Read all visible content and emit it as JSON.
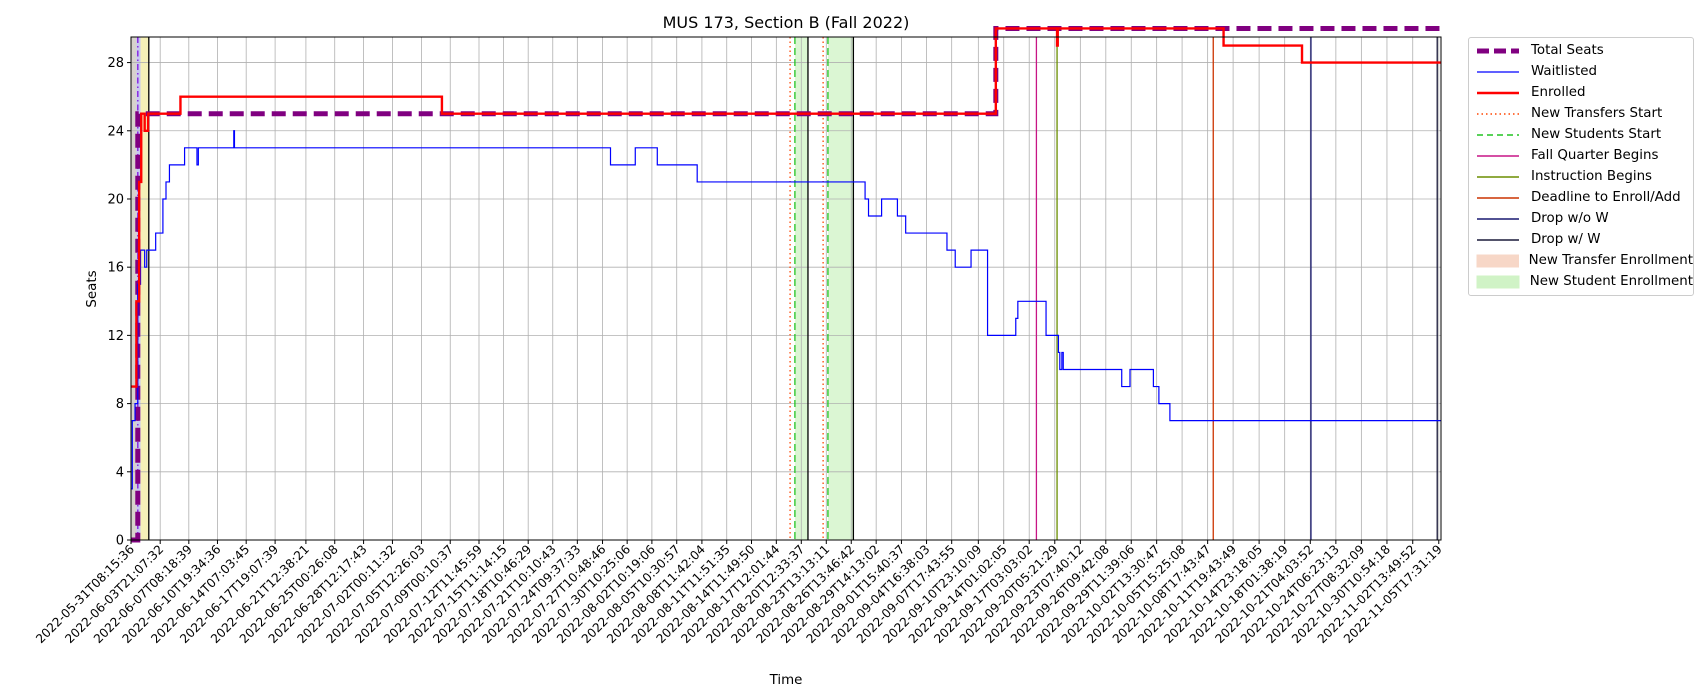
{
  "chart_data": {
    "type": "line",
    "title": "MUS 173, Section B (Fall 2022)",
    "xlabel": "Time",
    "ylabel": "Seats",
    "x_type": "datetime",
    "xlim": [
      "2022-05-31T08:15:36",
      "2022-11-06T00:00:00"
    ],
    "ylim": [
      0,
      29.5
    ],
    "yticks": [
      0,
      4,
      8,
      12,
      16,
      20,
      24,
      28
    ],
    "xtick_labels": [
      "2022-05-31T08:15:36",
      "2022-06-03T21:07:32",
      "2022-06-07T08:18:39",
      "2022-06-10T19:34:36",
      "2022-06-14T07:03:45",
      "2022-06-17T19:07:39",
      "2022-06-21T12:38:21",
      "2022-06-25T00:26:08",
      "2022-06-28T12:17:43",
      "2022-07-02T00:11:32",
      "2022-07-05T12:26:03",
      "2022-07-09T00:10:37",
      "2022-07-12T11:45:59",
      "2022-07-15T11:14:15",
      "2022-07-18T10:46:29",
      "2022-07-21T10:10:43",
      "2022-07-24T09:37:33",
      "2022-07-27T10:48:46",
      "2022-07-30T10:25:06",
      "2022-08-02T10:19:06",
      "2022-08-05T10:30:57",
      "2022-08-08T11:42:04",
      "2022-08-11T11:51:35",
      "2022-08-14T11:49:50",
      "2022-08-17T12:01:44",
      "2022-08-20T12:33:37",
      "2022-08-23T13:13:11",
      "2022-08-26T13:46:42",
      "2022-08-29T14:13:02",
      "2022-09-01T15:40:37",
      "2022-09-04T16:38:03",
      "2022-09-07T17:43:55",
      "2022-09-10T23:10:09",
      "2022-09-14T01:02:05",
      "2022-09-17T03:03:02",
      "2022-09-20T05:21:29",
      "2022-09-23T07:40:12",
      "2022-09-26T09:42:08",
      "2022-09-29T11:39:06",
      "2022-10-02T13:30:47",
      "2022-10-05T15:25:08",
      "2022-10-08T17:43:47",
      "2022-10-11T19:43:49",
      "2022-10-14T23:18:05",
      "2022-10-18T01:38:19",
      "2022-10-21T04:03:52",
      "2022-10-24T06:23:13",
      "2022-10-27T08:32:09",
      "2022-10-30T10:54:18",
      "2022-11-02T13:49:52",
      "2022-11-05T17:31:19"
    ],
    "grid": true,
    "legend_position": "outside upper right",
    "series": [
      {
        "name": "Total Seats",
        "color": "#800080",
        "style": "dashed",
        "points": [
          [
            "2022-05-31T08:15:36",
            0
          ],
          [
            "2022-06-01T04:00:00",
            0
          ],
          [
            "2022-06-01T04:00:00",
            25
          ],
          [
            "2022-09-13T02:00:00",
            25
          ],
          [
            "2022-09-13T02:00:00",
            30
          ],
          [
            "2022-11-06T00:00:00",
            30
          ]
        ]
      },
      {
        "name": "Waitlisted",
        "color": "#0000ff",
        "style": "solid",
        "points": [
          [
            "2022-05-31T08:15:36",
            3
          ],
          [
            "2022-05-31T12:00:00",
            3
          ],
          [
            "2022-05-31T12:00:00",
            7
          ],
          [
            "2022-05-31T20:00:00",
            7
          ],
          [
            "2022-05-31T20:00:00",
            8
          ],
          [
            "2022-06-01T04:00:00",
            8
          ],
          [
            "2022-06-01T04:00:00",
            15
          ],
          [
            "2022-06-01T12:00:00",
            15
          ],
          [
            "2022-06-01T12:00:00",
            17
          ],
          [
            "2022-06-02T00:00:00",
            17
          ],
          [
            "2022-06-02T00:00:00",
            16
          ],
          [
            "2022-06-02T06:00:00",
            16
          ],
          [
            "2022-06-02T06:00:00",
            17
          ],
          [
            "2022-06-03T08:00:00",
            17
          ],
          [
            "2022-06-03T08:00:00",
            18
          ],
          [
            "2022-06-04T05:00:00",
            18
          ],
          [
            "2022-06-04T05:00:00",
            20
          ],
          [
            "2022-06-04T14:00:00",
            20
          ],
          [
            "2022-06-04T14:00:00",
            21
          ],
          [
            "2022-06-05T00:00:00",
            21
          ],
          [
            "2022-06-05T00:00:00",
            22
          ],
          [
            "2022-06-06T20:00:00",
            22
          ],
          [
            "2022-06-06T20:00:00",
            23
          ],
          [
            "2022-06-08T08:00:00",
            23
          ],
          [
            "2022-06-08T08:00:00",
            22
          ],
          [
            "2022-06-08T12:00:00",
            22
          ],
          [
            "2022-06-08T12:00:00",
            23
          ],
          [
            "2022-06-12T19:00:00",
            23
          ],
          [
            "2022-06-12T19:00:00",
            24
          ],
          [
            "2022-06-12T21:00:00",
            24
          ],
          [
            "2022-06-12T21:00:00",
            23
          ],
          [
            "2022-07-28T10:00:00",
            23
          ],
          [
            "2022-07-28T10:00:00",
            22
          ],
          [
            "2022-07-31T10:00:00",
            22
          ],
          [
            "2022-07-31T10:00:00",
            23
          ],
          [
            "2022-08-03T02:00:00",
            23
          ],
          [
            "2022-08-03T02:00:00",
            22
          ],
          [
            "2022-08-07T22:00:00",
            22
          ],
          [
            "2022-08-07T22:00:00",
            21
          ],
          [
            "2022-08-28T06:00:00",
            21
          ],
          [
            "2022-08-28T06:00:00",
            20
          ],
          [
            "2022-08-28T16:00:00",
            20
          ],
          [
            "2022-08-28T16:00:00",
            19
          ],
          [
            "2022-08-30T06:00:00",
            19
          ],
          [
            "2022-08-30T06:00:00",
            20
          ],
          [
            "2022-09-01T04:00:00",
            20
          ],
          [
            "2022-09-01T04:00:00",
            19
          ],
          [
            "2022-09-02T04:00:00",
            19
          ],
          [
            "2022-09-02T04:00:00",
            18
          ],
          [
            "2022-09-07T04:00:00",
            18
          ],
          [
            "2022-09-07T04:00:00",
            17
          ],
          [
            "2022-09-08T04:00:00",
            17
          ],
          [
            "2022-09-08T04:00:00",
            16
          ],
          [
            "2022-09-10T02:00:00",
            16
          ],
          [
            "2022-09-10T02:00:00",
            17
          ],
          [
            "2022-09-12T02:00:00",
            17
          ],
          [
            "2022-09-12T02:00:00",
            12
          ],
          [
            "2022-09-15T12:00:00",
            12
          ],
          [
            "2022-09-15T12:00:00",
            13
          ],
          [
            "2022-09-15T18:00:00",
            13
          ],
          [
            "2022-09-15T18:00:00",
            14
          ],
          [
            "2022-09-19T04:00:00",
            14
          ],
          [
            "2022-09-19T04:00:00",
            12
          ],
          [
            "2022-09-20T16:00:00",
            12
          ],
          [
            "2022-09-20T16:00:00",
            11
          ],
          [
            "2022-09-20T20:00:00",
            11
          ],
          [
            "2022-09-20T20:00:00",
            10
          ],
          [
            "2022-09-21T02:00:00",
            10
          ],
          [
            "2022-09-21T02:00:00",
            11
          ],
          [
            "2022-09-21T06:00:00",
            11
          ],
          [
            "2022-09-21T06:00:00",
            10
          ],
          [
            "2022-09-28T08:00:00",
            10
          ],
          [
            "2022-09-28T08:00:00",
            9
          ],
          [
            "2022-09-29T08:00:00",
            9
          ],
          [
            "2022-09-29T08:00:00",
            10
          ],
          [
            "2022-10-02T04:00:00",
            10
          ],
          [
            "2022-10-02T04:00:00",
            9
          ],
          [
            "2022-10-02T20:00:00",
            9
          ],
          [
            "2022-10-02T20:00:00",
            8
          ],
          [
            "2022-10-04T04:00:00",
            8
          ],
          [
            "2022-10-04T04:00:00",
            7
          ],
          [
            "2022-11-06T00:00:00",
            7
          ]
        ]
      },
      {
        "name": "Enrolled",
        "color": "#ff0000",
        "style": "solid",
        "points": [
          [
            "2022-05-31T08:15:36",
            9
          ],
          [
            "2022-06-01T00:00:00",
            9
          ],
          [
            "2022-06-01T00:00:00",
            14
          ],
          [
            "2022-06-01T08:00:00",
            14
          ],
          [
            "2022-06-01T08:00:00",
            21
          ],
          [
            "2022-06-01T14:00:00",
            21
          ],
          [
            "2022-06-01T14:00:00",
            25
          ],
          [
            "2022-06-02T00:00:00",
            25
          ],
          [
            "2022-06-02T00:00:00",
            24
          ],
          [
            "2022-06-02T10:00:00",
            24
          ],
          [
            "2022-06-02T10:00:00",
            25
          ],
          [
            "2022-06-06T08:00:00",
            25
          ],
          [
            "2022-06-06T08:00:00",
            26
          ],
          [
            "2022-07-08T00:00:00",
            26
          ],
          [
            "2022-07-08T00:00:00",
            25
          ],
          [
            "2022-09-13T02:00:00",
            25
          ],
          [
            "2022-09-13T02:00:00",
            30
          ],
          [
            "2022-09-20T12:00:00",
            30
          ],
          [
            "2022-09-20T12:00:00",
            29
          ],
          [
            "2022-09-20T14:00:00",
            29
          ],
          [
            "2022-09-20T14:00:00",
            30
          ],
          [
            "2022-10-10T16:00:00",
            30
          ],
          [
            "2022-10-10T16:00:00",
            29
          ],
          [
            "2022-10-20T04:00:00",
            29
          ],
          [
            "2022-10-20T04:00:00",
            28
          ],
          [
            "2022-11-06T00:00:00",
            28
          ]
        ]
      }
    ],
    "markers": [
      {
        "name": "New Transfers Start",
        "color": "#ff4500",
        "style": "dotted",
        "x": [
          "2022-08-19T04:00:00",
          "2022-08-23T04:00:00"
        ]
      },
      {
        "name": "New Students Start",
        "color": "#22c422",
        "style": "dashed",
        "x": [
          "2022-08-19T18:00:00",
          "2022-08-23T18:00:00"
        ]
      },
      {
        "name": "Fall Quarter Begins",
        "color": "#c71585",
        "style": "solid",
        "x": [
          "2022-09-18T00:00:00"
        ]
      },
      {
        "name": "Instruction Begins",
        "color": "#6b8e00",
        "style": "solid",
        "x": [
          "2022-09-20T12:00:00"
        ]
      },
      {
        "name": "Deadline to Enroll/Add",
        "color": "#cc3300",
        "style": "solid",
        "x": [
          "2022-10-09T10:00:00"
        ]
      },
      {
        "name": "Drop w/o W",
        "color": "#191970",
        "style": "solid",
        "x": [
          "2022-10-21T06:00:00"
        ]
      },
      {
        "name": "Drop w/ W",
        "color": "#1a1a3a",
        "style": "solid",
        "x": [
          "2022-11-05T13:00:00"
        ]
      }
    ],
    "shaded_regions": [
      {
        "name": "New Transfer Enrollment",
        "color": "#f4c7b0",
        "ranges": [
          [
            "2022-05-31T08:15:36",
            "2022-06-01T00:00:00"
          ]
        ]
      },
      {
        "name": "New Student Enrollment",
        "color": "#bdeeaf",
        "ranges": [
          [
            "2022-08-19T18:00:00",
            "2022-08-21T08:00:00"
          ],
          [
            "2022-08-23T18:00:00",
            "2022-08-26T20:00:00"
          ]
        ]
      }
    ],
    "background_regions": [
      {
        "color": "#b4dff0",
        "range": [
          "2022-05-31T08:15:36",
          "2022-06-01T00:00:00"
        ]
      },
      {
        "color": "#c7c8f0",
        "range": [
          "2022-06-01T00:00:00",
          "2022-06-01T12:00:00"
        ]
      },
      {
        "color": "#f5f0b8",
        "range": [
          "2022-06-01T12:00:00",
          "2022-06-02T12:00:00"
        ]
      }
    ],
    "black_lines_x": [
      "2022-06-02T12:00:00",
      "2022-08-21T08:00:00",
      "2022-08-26T20:00:00"
    ],
    "purple_dashdot_x": [
      "2022-06-01T04:00:00"
    ]
  }
}
